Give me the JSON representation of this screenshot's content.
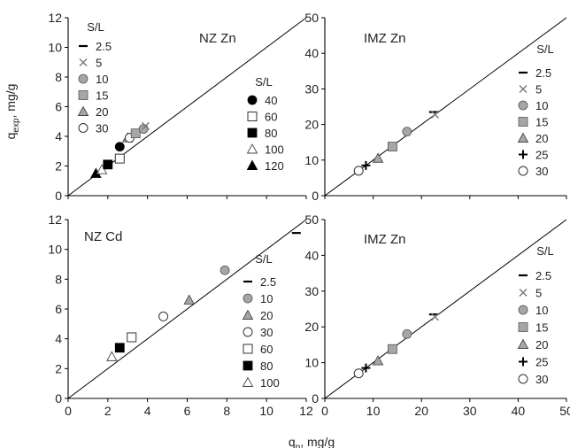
{
  "figure": {
    "y_label_main": "q",
    "y_label_sub": "exp",
    "y_label_unit": ", mg/g",
    "x_label_main": "q",
    "x_label_sub": "p",
    "x_label_unit": ", mg/g"
  },
  "chart_data": [
    {
      "type": "scatter",
      "panel": "top-left",
      "title": "NZ Zn",
      "xlim": [
        0,
        12
      ],
      "ylim": [
        0,
        12
      ],
      "x_ticks": [
        0,
        2,
        4,
        6,
        8,
        10,
        12
      ],
      "y_ticks": [
        0,
        2,
        4,
        6,
        8,
        10,
        12
      ],
      "show_x_tick_labels": false,
      "reference_line": "y=x",
      "legends": [
        {
          "title": "S/L",
          "items": [
            {
              "label": "2.5",
              "marker": "dash"
            },
            {
              "label": "5",
              "marker": "x"
            },
            {
              "label": "10",
              "marker": "circle-gray"
            },
            {
              "label": "15",
              "marker": "square-gray"
            },
            {
              "label": "20",
              "marker": "triangle-gray"
            },
            {
              "label": "30",
              "marker": "circle-open"
            }
          ]
        },
        {
          "title": "S/L",
          "items": [
            {
              "label": "40",
              "marker": "circle-black"
            },
            {
              "label": "60",
              "marker": "square-open"
            },
            {
              "label": "80",
              "marker": "square-black"
            },
            {
              "label": "100",
              "marker": "triangle-open"
            },
            {
              "label": "120",
              "marker": "triangle-black"
            }
          ]
        }
      ],
      "points": [
        {
          "x": 1.4,
          "y": 1.5,
          "marker": "triangle-black"
        },
        {
          "x": 1.7,
          "y": 1.75,
          "marker": "triangle-open"
        },
        {
          "x": 2.0,
          "y": 2.1,
          "marker": "square-black"
        },
        {
          "x": 2.6,
          "y": 2.5,
          "marker": "square-open"
        },
        {
          "x": 3.0,
          "y": 3.9,
          "marker": "triangle-gray"
        },
        {
          "x": 3.1,
          "y": 3.9,
          "marker": "circle-open"
        },
        {
          "x": 2.6,
          "y": 3.3,
          "marker": "circle-black"
        },
        {
          "x": 3.4,
          "y": 4.2,
          "marker": "square-gray"
        },
        {
          "x": 3.8,
          "y": 4.5,
          "marker": "circle-gray"
        },
        {
          "x": 3.9,
          "y": 4.7,
          "marker": "x"
        }
      ]
    },
    {
      "type": "scatter",
      "panel": "top-right",
      "title": "IMZ Zn",
      "xlim": [
        0,
        50
      ],
      "ylim": [
        0,
        50
      ],
      "x_ticks": [
        0,
        10,
        20,
        30,
        40,
        50
      ],
      "y_ticks": [
        0,
        10,
        20,
        30,
        40,
        50
      ],
      "show_x_tick_labels": false,
      "reference_line": "y=x",
      "legends": [
        {
          "title": "S/L",
          "items": [
            {
              "label": "2.5",
              "marker": "dash"
            },
            {
              "label": "5",
              "marker": "x"
            },
            {
              "label": "10",
              "marker": "circle-gray"
            },
            {
              "label": "15",
              "marker": "square-gray"
            },
            {
              "label": "20",
              "marker": "triangle-gray"
            },
            {
              "label": "25",
              "marker": "plus"
            },
            {
              "label": "30",
              "marker": "circle-open"
            }
          ]
        }
      ],
      "points": [
        {
          "x": 7.0,
          "y": 7.0,
          "marker": "circle-open"
        },
        {
          "x": 8.5,
          "y": 8.5,
          "marker": "plus"
        },
        {
          "x": 11.0,
          "y": 10.5,
          "marker": "triangle-gray"
        },
        {
          "x": 14.0,
          "y": 13.8,
          "marker": "square-gray"
        },
        {
          "x": 17.0,
          "y": 18.0,
          "marker": "circle-gray"
        },
        {
          "x": 22.5,
          "y": 23.5,
          "marker": "dash"
        },
        {
          "x": 22.8,
          "y": 22.8,
          "marker": "x"
        }
      ]
    },
    {
      "type": "scatter",
      "panel": "bottom-left",
      "title": "NZ Cd",
      "xlim": [
        0,
        12
      ],
      "ylim": [
        0,
        12
      ],
      "x_ticks": [
        0,
        2,
        4,
        6,
        8,
        10,
        12
      ],
      "y_ticks": [
        0,
        2,
        4,
        6,
        8,
        10,
        12
      ],
      "show_x_tick_labels": true,
      "reference_line": "y=x",
      "legends": [
        {
          "title": "S/L",
          "items": [
            {
              "label": "2.5",
              "marker": "dash"
            },
            {
              "label": "10",
              "marker": "circle-gray"
            },
            {
              "label": "20",
              "marker": "triangle-gray"
            },
            {
              "label": "30",
              "marker": "circle-open"
            },
            {
              "label": "60",
              "marker": "square-open"
            },
            {
              "label": "80",
              "marker": "square-black"
            },
            {
              "label": "100",
              "marker": "triangle-open"
            }
          ]
        }
      ],
      "points": [
        {
          "x": 2.2,
          "y": 2.8,
          "marker": "triangle-open"
        },
        {
          "x": 2.6,
          "y": 3.4,
          "marker": "square-black"
        },
        {
          "x": 3.2,
          "y": 4.1,
          "marker": "square-open"
        },
        {
          "x": 4.8,
          "y": 5.5,
          "marker": "circle-open"
        },
        {
          "x": 6.1,
          "y": 6.6,
          "marker": "triangle-gray"
        },
        {
          "x": 7.9,
          "y": 8.6,
          "marker": "circle-gray"
        },
        {
          "x": 11.5,
          "y": 11.1,
          "marker": "dash"
        }
      ]
    },
    {
      "type": "scatter",
      "panel": "bottom-right",
      "title": "IMZ Zn",
      "xlim": [
        0,
        50
      ],
      "ylim": [
        0,
        50
      ],
      "x_ticks": [
        0,
        10,
        20,
        30,
        40,
        50
      ],
      "y_ticks": [
        0,
        10,
        20,
        30,
        40,
        50
      ],
      "show_x_tick_labels": true,
      "reference_line": "y=x",
      "legends": [
        {
          "title": "S/L",
          "items": [
            {
              "label": "2.5",
              "marker": "dash"
            },
            {
              "label": "5",
              "marker": "x"
            },
            {
              "label": "10",
              "marker": "circle-gray"
            },
            {
              "label": "15",
              "marker": "square-gray"
            },
            {
              "label": "20",
              "marker": "triangle-gray"
            },
            {
              "label": "25",
              "marker": "plus"
            },
            {
              "label": "30",
              "marker": "circle-open"
            }
          ]
        }
      ],
      "points": [
        {
          "x": 7.0,
          "y": 7.0,
          "marker": "circle-open"
        },
        {
          "x": 8.5,
          "y": 8.5,
          "marker": "plus"
        },
        {
          "x": 11.0,
          "y": 10.5,
          "marker": "triangle-gray"
        },
        {
          "x": 14.0,
          "y": 13.8,
          "marker": "square-gray"
        },
        {
          "x": 17.0,
          "y": 18.0,
          "marker": "circle-gray"
        },
        {
          "x": 22.5,
          "y": 23.5,
          "marker": "dash"
        },
        {
          "x": 22.8,
          "y": 22.8,
          "marker": "x"
        }
      ]
    }
  ]
}
